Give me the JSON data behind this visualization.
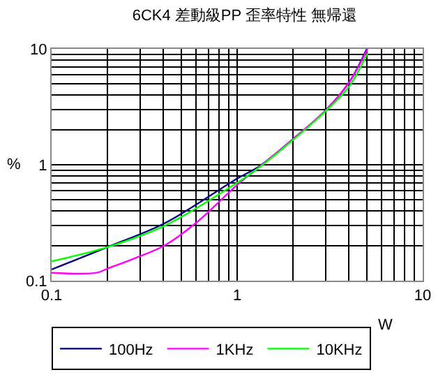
{
  "chart_data": {
    "type": "line",
    "title": "6CK4 差動級PP 歪率特性 無帰還",
    "xlabel": "W",
    "ylabel": "%",
    "log": "xy",
    "xlim": [
      0.1,
      10
    ],
    "ylim": [
      0.1,
      10
    ],
    "xticks": [
      0.1,
      1,
      10
    ],
    "yticks": [
      0.1,
      1,
      10
    ],
    "grid": true,
    "legend": "bottom",
    "marker": "none",
    "line_style": "solid",
    "series": [
      {
        "name": "100Hz",
        "color": "#000080",
        "x": [
          0.1,
          0.2,
          0.41,
          1,
          1.33,
          2.1,
          3,
          4,
          5
        ],
        "values": [
          0.125,
          0.195,
          0.315,
          0.76,
          0.98,
          1.78,
          2.95,
          5.1,
          10
        ]
      },
      {
        "name": "1KHz",
        "color": "#ff00ff",
        "x": [
          0.1,
          0.175,
          0.2,
          0.275,
          0.41,
          0.6,
          1,
          1.33,
          2.1,
          3,
          4,
          5.05
        ],
        "values": [
          0.117,
          0.117,
          0.127,
          0.154,
          0.203,
          0.315,
          0.67,
          0.97,
          1.78,
          2.95,
          5.1,
          10
        ]
      },
      {
        "name": "10KHz",
        "color": "#00ff00",
        "x": [
          0.1,
          0.2,
          0.41,
          1,
          1.33,
          2.1,
          3,
          4,
          5.05
        ],
        "values": [
          0.147,
          0.195,
          0.3,
          0.7,
          0.96,
          1.75,
          2.9,
          4.7,
          9.2
        ]
      }
    ]
  }
}
